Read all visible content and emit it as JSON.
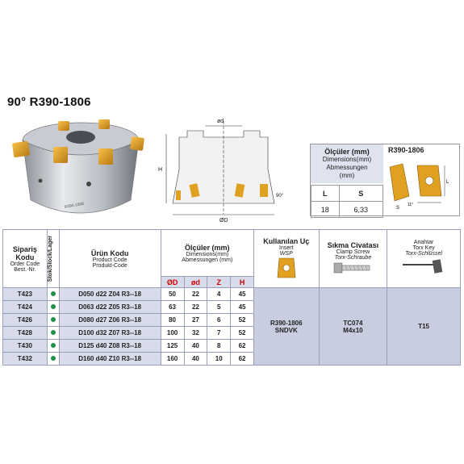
{
  "title": {
    "angle": "90°",
    "code": "R390-1806"
  },
  "drawing": {
    "label_d": "ød",
    "label_D": "ØD",
    "label_H": "H",
    "label_angle": "90°"
  },
  "dims": {
    "head_bold": "Ölçüler (mm)",
    "head_line2": "Dimensions(mm)",
    "head_line3": "Abmessungen",
    "head_line4": "(mm)",
    "insert_name": "R390-1806",
    "col_L": "L",
    "col_S": "S",
    "val_L": "18",
    "val_S": "6,33",
    "label_L": "L",
    "label_S": "S",
    "label_angle": "11°"
  },
  "table": {
    "order_code": {
      "tr": "Sipariş Kodu",
      "en": "Order Code",
      "de": "Best.-Nr."
    },
    "stock": "Stok/Stock/Lager",
    "product_code": {
      "tr": "Ürün Kodu",
      "en": "Product Code",
      "de": "Produkt-Code"
    },
    "dims_head": {
      "tr": "Ölçüler (mm)",
      "en": "Dimensions(mm)",
      "de": "Abmessungen (mm)"
    },
    "dim_cols": [
      "ØD",
      "ød",
      "Z",
      "H"
    ],
    "insert_head": {
      "tr": "Kullanılan Uç",
      "en": "Insert",
      "de": "WSP"
    },
    "screw_head": {
      "tr": "Sıkma Civatası",
      "en": "Clamp Screw",
      "de": "Torx-Schraube"
    },
    "key_head": {
      "tr": "Anahtar",
      "en": "Torx Key",
      "de": "Torx-Schlüssel"
    },
    "rows": [
      {
        "order": "T423",
        "product": "D050 d22 Z04 R3--18",
        "D": "50",
        "d": "22",
        "Z": "4",
        "H": "45"
      },
      {
        "order": "T424",
        "product": "D063 d22 Z05 R3--18",
        "D": "63",
        "d": "22",
        "Z": "5",
        "H": "45"
      },
      {
        "order": "T426",
        "product": "D080 d27 Z06 R3--18",
        "D": "80",
        "d": "27",
        "Z": "6",
        "H": "52"
      },
      {
        "order": "T428",
        "product": "D100 d32 Z07 R3--18",
        "D": "100",
        "d": "32",
        "Z": "7",
        "H": "52"
      },
      {
        "order": "T430",
        "product": "D125 d40 Z08 R3--18",
        "D": "125",
        "d": "40",
        "Z": "8",
        "H": "62"
      },
      {
        "order": "T432",
        "product": "D160 d40 Z10 R3--18",
        "D": "160",
        "d": "40",
        "Z": "10",
        "H": "62"
      }
    ],
    "insert_val": {
      "l1": "R390-1806",
      "l2": "SNDVK"
    },
    "screw_val": {
      "l1": "TC074",
      "l2": "M4x10"
    },
    "key_val": "T15"
  },
  "colors": {
    "accent_red": "#cc0000",
    "stock_green": "#1e8f4a",
    "row_shade": "#d8dcea",
    "insert_gold": "#e0a020"
  }
}
